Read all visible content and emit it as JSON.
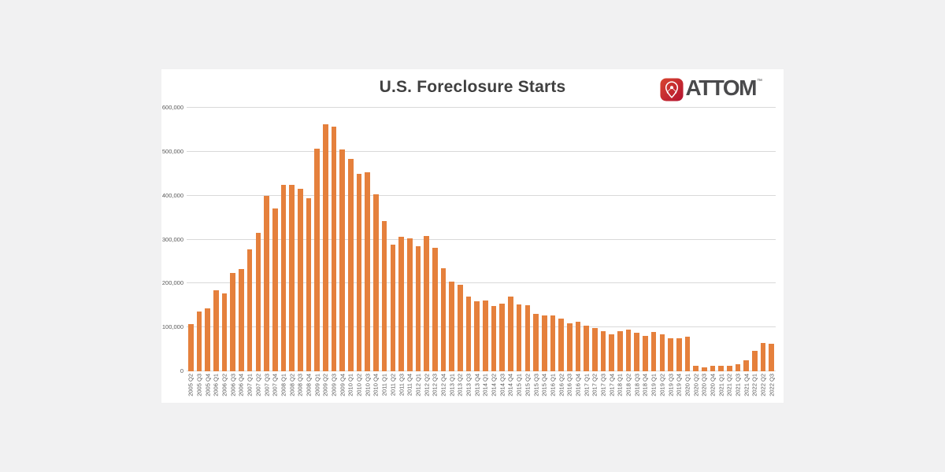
{
  "page": {
    "background": "#f1f1f2",
    "card_background": "#ffffff"
  },
  "header": {
    "title": "U.S. Foreclosure Starts",
    "logo_text": "ATTOM",
    "logo_tm": "™"
  },
  "colors": {
    "bar": "#e5803c",
    "gridline": "#d9d9d9",
    "axis_text": "#595959",
    "title_text": "#404040",
    "logo_red": "#c5202e",
    "logo_text": "#4a4a4c"
  },
  "chart_data": {
    "type": "bar",
    "title": "U.S. Foreclosure Starts",
    "xlabel": "",
    "ylabel": "",
    "ylim": [
      0,
      600000
    ],
    "ytick_step": 100000,
    "ytick_labels": [
      "0",
      "100,000",
      "200,000",
      "300,000",
      "400,000",
      "500,000",
      "600,000"
    ],
    "grid": true,
    "legend": "none",
    "bar_color": "#e5803c",
    "categories": [
      "2005 Q2",
      "2005 Q3",
      "2005 Q4",
      "2006 Q1",
      "2006 Q2",
      "2006 Q3",
      "2006 Q4",
      "2007 Q1",
      "2007 Q2",
      "2007 Q3",
      "2007 Q4",
      "2008 Q1",
      "2008 Q2",
      "2008 Q3",
      "2008 Q4",
      "2009 Q1",
      "2009 Q2",
      "2009 Q3",
      "2009 Q4",
      "2010 Q1",
      "2010 Q2",
      "2010 Q3",
      "2010 Q4",
      "2011 Q1",
      "2011 Q2",
      "2011 Q3",
      "2011 Q4",
      "2012 Q1",
      "2012 Q2",
      "2012 Q3",
      "2012 Q4",
      "2013 Q1",
      "2013 Q2",
      "2013 Q3",
      "2013 Q4",
      "2014 Q1",
      "2014 Q2",
      "2014 Q3",
      "2014 Q4",
      "2015 Q1",
      "2015 Q2",
      "2015 Q3",
      "2015 Q4",
      "2016 Q1",
      "2016 Q2",
      "2016 Q3",
      "2016 Q4",
      "2017 Q1",
      "2017 Q2",
      "2017 Q3",
      "2017 Q4",
      "2018 Q1",
      "2018 Q2",
      "2018 Q3",
      "2018 Q4",
      "2019 Q1",
      "2019 Q2",
      "2019 Q3",
      "2019 Q4",
      "2020 Q1",
      "2020 Q2",
      "2020 Q3",
      "2020 Q4",
      "2021 Q1",
      "2021 Q2",
      "2021 Q3",
      "2021 Q4",
      "2022 Q1",
      "2022 Q2",
      "2022 Q3"
    ],
    "values": [
      108000,
      137000,
      144000,
      184000,
      178000,
      224000,
      232000,
      278000,
      316000,
      399000,
      370000,
      425000,
      424000,
      416000,
      394000,
      507000,
      563000,
      557000,
      505000,
      483000,
      449000,
      454000,
      403000,
      343000,
      289000,
      307000,
      302000,
      285000,
      308000,
      281000,
      235000,
      205000,
      197000,
      170000,
      160000,
      162000,
      149000,
      154000,
      170000,
      152000,
      151000,
      131000,
      128000,
      127000,
      120000,
      110000,
      112000,
      104000,
      99000,
      92000,
      84000,
      92000,
      95000,
      87000,
      81000,
      90000,
      84000,
      75000,
      76000,
      78000,
      13000,
      9000,
      12000,
      13000,
      13000,
      16000,
      25000,
      46000,
      64000,
      63000
    ]
  }
}
